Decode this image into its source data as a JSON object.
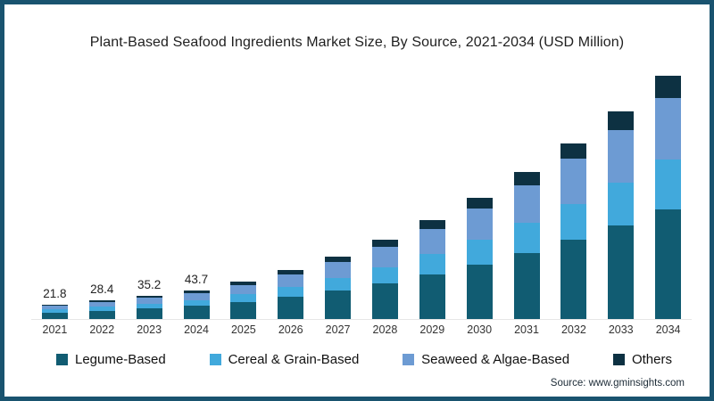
{
  "page": {
    "title": "Plant-Based Seafood Ingredients Market Size, By Source, 2021-2034 (USD Million)",
    "source_text": "Source: www.gminsights.com"
  },
  "colors": {
    "border": "#19536F",
    "legume": "#115C72",
    "cereal": "#41A9DC",
    "seaweed": "#6D9BD3",
    "others": "#0D3142",
    "axis_line": "#E6E6E6"
  },
  "chart_data": {
    "type": "bar",
    "stacked": true,
    "title": "Plant-Based Seafood Ingredients Market Size, By Source, 2021-2034 (USD Million)",
    "unit": "USD Million",
    "grid": false,
    "legend_position": "bottom",
    "categories": [
      "2021",
      "2022",
      "2023",
      "2024",
      "2025",
      "2026",
      "2027",
      "2028",
      "2029",
      "2030",
      "2031",
      "2032",
      "2033",
      "2034"
    ],
    "series": [
      {
        "name": "Legume-Based",
        "color_key": "legume",
        "values": [
          9.8,
          12.8,
          15.8,
          19.7,
          25.6,
          33.3,
          42.7,
          54.0,
          67.5,
          82.8,
          99.9,
          119.7,
          141.3,
          165.6
        ]
      },
      {
        "name": "Cereal & Grain-Based",
        "color_key": "cereal",
        "values": [
          4.5,
          5.8,
          7.2,
          9.0,
          11.7,
          15.2,
          19.5,
          24.6,
          30.8,
          37.7,
          45.5,
          54.5,
          64.4,
          75.4
        ]
      },
      {
        "name": "Seaweed & Algae-Based",
        "color_key": "seaweed",
        "values": [
          5.6,
          7.2,
          9.0,
          11.1,
          14.6,
          18.9,
          24.3,
          30.6,
          38.2,
          46.9,
          56.6,
          67.9,
          80.1,
          93.8
        ]
      },
      {
        "name": "Others",
        "color_key": "others",
        "values": [
          1.9,
          2.6,
          3.2,
          3.9,
          5.1,
          6.6,
          8.5,
          10.8,
          13.5,
          16.6,
          20.0,
          23.9,
          28.2,
          33.2
        ]
      }
    ],
    "totals": [
      21.8,
      28.4,
      35.2,
      43.7,
      57.0,
      74.0,
      95.0,
      120.0,
      150.0,
      184.0,
      222.0,
      266.0,
      314.0,
      368.0
    ],
    "bar_labels": [
      "21.8",
      "28.4",
      "35.2",
      "43.7",
      "",
      "",
      "",
      "",
      "",
      "",
      "",
      "",
      "",
      ""
    ],
    "legend": [
      {
        "label": "Legume-Based",
        "color_key": "legume"
      },
      {
        "label": "Cereal & Grain-Based",
        "color_key": "cereal"
      },
      {
        "label": "Seaweed & Algae-Based",
        "color_key": "seaweed"
      },
      {
        "label": "Others",
        "color_key": "others"
      }
    ]
  }
}
